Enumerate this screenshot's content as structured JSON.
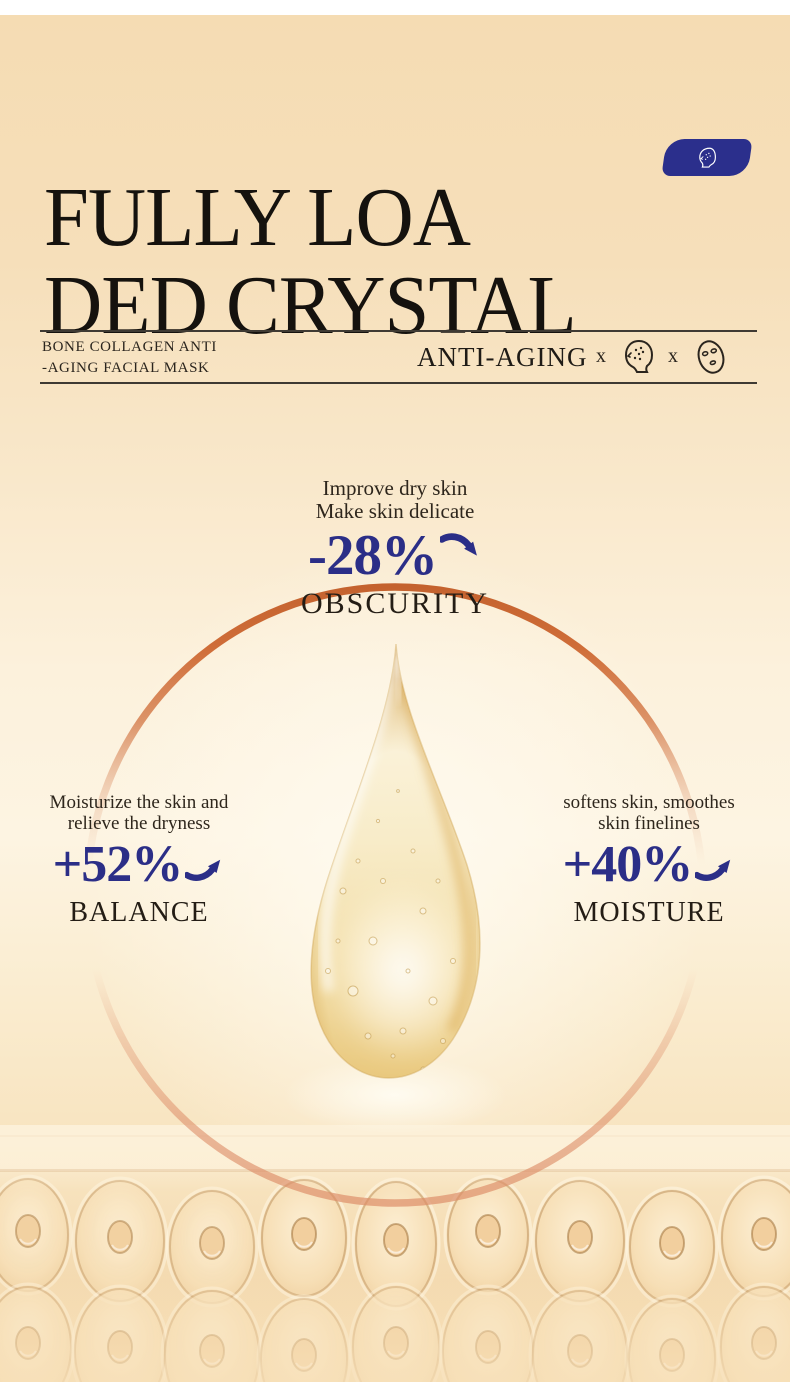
{
  "header": {
    "title_line1": "FULLY LOA",
    "title_line2": "DED CRYSTAL"
  },
  "subheader": {
    "product_line1": "BONE COLLAGEN ANTI",
    "product_line2": "-AGING FACIAL MASK",
    "category": "ANTI-AGING",
    "multiply_1": "x",
    "multiply_2": "x"
  },
  "callouts": {
    "top": {
      "desc1": "Improve dry skin",
      "desc2": "Make skin delicate",
      "stat": "-28%",
      "trend": "down",
      "label": "OBSCURITY"
    },
    "left": {
      "desc1": "Moisturize the skin and",
      "desc2": "relieve the dryness",
      "stat": "+52%",
      "trend": "up",
      "label": "BALANCE"
    },
    "right": {
      "desc1": "softens skin, smoothes",
      "desc2": "skin finelines",
      "stat": "+40%",
      "trend": "up",
      "label": "MOISTURE"
    }
  },
  "icons": {
    "badge": "face-scan-icon",
    "collab_1": "face-profile-icon",
    "collab_2": "face-mask-icon"
  },
  "colors": {
    "accent_navy": "#2b2e87",
    "ring_orange": "#cd6a34",
    "background_beige": "#f5dcb3",
    "badge_navy": "#2b2f8c",
    "text_black": "#15120e"
  }
}
